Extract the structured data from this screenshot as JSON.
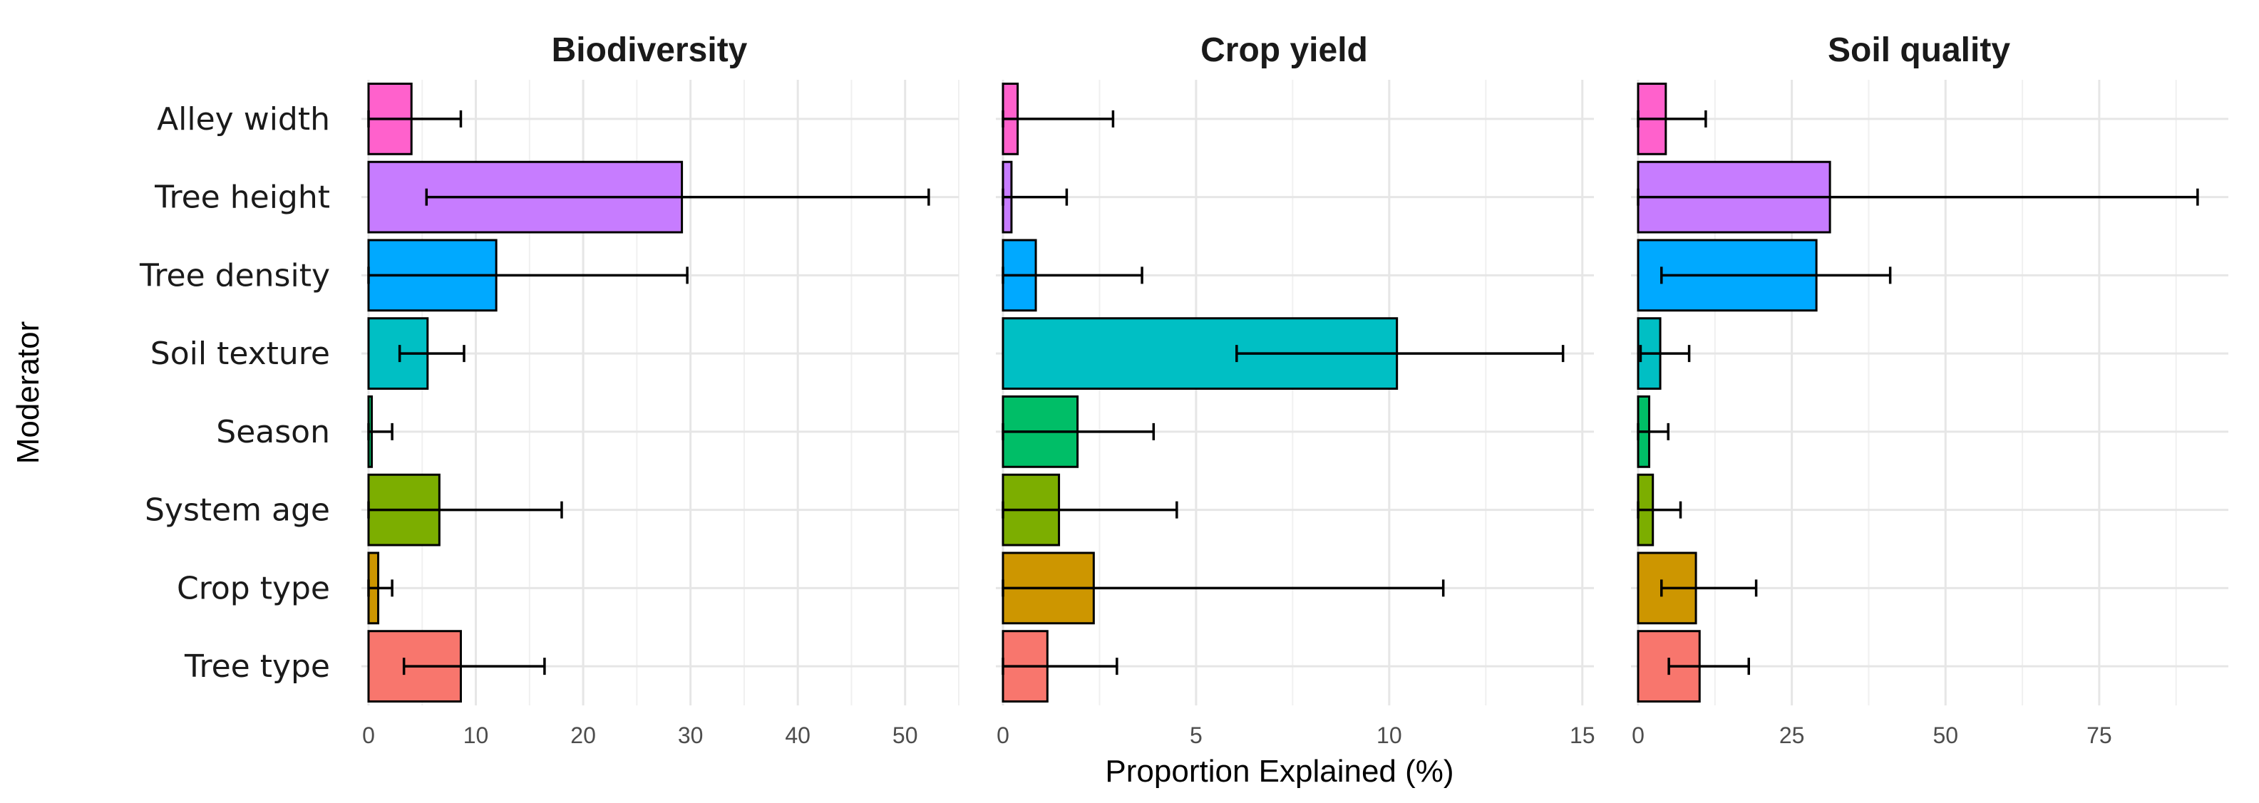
{
  "chart_data": {
    "type": "bar",
    "orientation": "horizontal",
    "xlabel": "Proportion Explained (%)",
    "ylabel": "Moderator",
    "grid": true,
    "legend": "none",
    "categories": [
      "Alley width",
      "Tree height",
      "Tree density",
      "Soil texture",
      "Season",
      "System age",
      "Crop type",
      "Tree type"
    ],
    "colors": [
      "#FF61CC",
      "#C77CFF",
      "#00A9FF",
      "#00BFC4",
      "#00BE67",
      "#7CAE00",
      "#CD9600",
      "#F8766D"
    ],
    "panels": [
      {
        "title": "Biodiversity",
        "xlim": [
          0,
          55
        ],
        "xticks": [
          0,
          10,
          20,
          30,
          40,
          50
        ],
        "values": [
          4.0,
          29.2,
          11.9,
          5.5,
          0.3,
          6.6,
          0.9,
          8.6
        ],
        "error_low": [
          0.0,
          5.4,
          0.0,
          2.9,
          0.0,
          0.0,
          0.0,
          3.3
        ],
        "error_high": [
          8.6,
          52.2,
          29.7,
          8.9,
          2.2,
          18.0,
          2.2,
          16.4
        ]
      },
      {
        "title": "Crop yield",
        "xlim": [
          0,
          15.3
        ],
        "xticks": [
          0,
          5,
          10,
          15
        ],
        "values": [
          0.38,
          0.22,
          0.85,
          10.2,
          1.93,
          1.45,
          2.35,
          1.15
        ],
        "error_low": [
          0.0,
          0.0,
          0.0,
          6.05,
          0.0,
          0.0,
          0.0,
          0.0
        ],
        "error_high": [
          2.85,
          1.65,
          3.6,
          14.5,
          3.9,
          4.5,
          11.4,
          2.95
        ]
      },
      {
        "title": "Soil quality",
        "xlim": [
          0,
          96
        ],
        "xticks": [
          0,
          25,
          50,
          75
        ],
        "values": [
          4.5,
          31.2,
          29.0,
          3.6,
          1.8,
          2.4,
          9.4,
          10.0
        ],
        "error_low": [
          0.0,
          0.0,
          3.8,
          0.4,
          0.0,
          0.0,
          3.8,
          5.0
        ],
        "error_high": [
          11.0,
          91.0,
          41.0,
          8.3,
          4.9,
          6.9,
          19.2,
          18.0
        ]
      }
    ]
  }
}
